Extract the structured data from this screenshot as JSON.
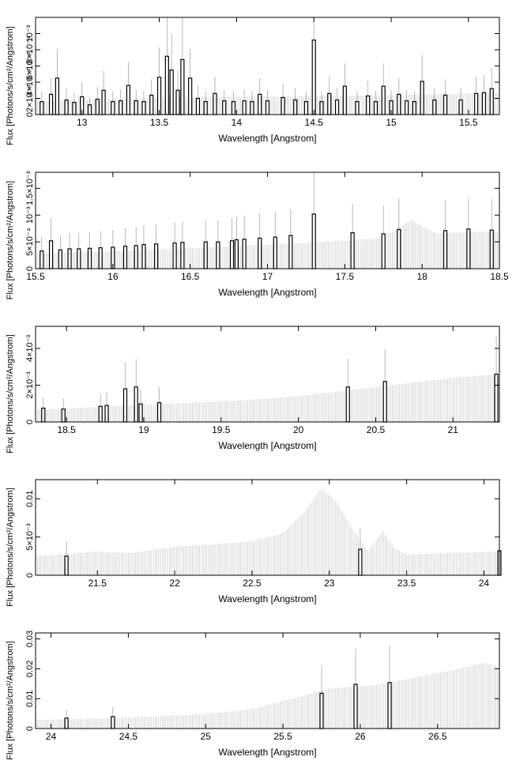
{
  "figure": {
    "x_label": "Wavelength [Angstrom]",
    "y_label": "Flux [Photons/s/cm²/Angstrom]"
  },
  "chart_data": [
    {
      "type": "bar",
      "title": "",
      "xlabel": "Wavelength [Angstrom]",
      "ylabel": "Flux [Photons/s/cm²/Angstrom]",
      "xlim": [
        12.7,
        15.7
      ],
      "ylim": [
        0,
        0.0012
      ],
      "x_ticks": [
        13,
        13.5,
        14,
        14.5,
        15,
        15.5
      ],
      "y_ticks": [
        {
          "v": 0,
          "label": "0"
        },
        {
          "v": 0.0002,
          "label": "2×10⁻⁴"
        },
        {
          "v": 0.0004,
          "label": "4×10⁻⁴"
        },
        {
          "v": 0.0006,
          "label": "6×10⁻⁴"
        },
        {
          "v": 0.0008,
          "label": "8×10⁻⁴"
        },
        {
          "v": 0.001,
          "label": "10⁻³"
        }
      ],
      "model": {
        "color": "#bdbdbd",
        "points": [
          [
            12.7,
            0.00016
          ],
          [
            13.0,
            0.00018
          ],
          [
            13.5,
            0.00021
          ],
          [
            14.0,
            0.00022
          ],
          [
            14.5,
            0.00023
          ],
          [
            15.0,
            0.00024
          ],
          [
            15.5,
            0.00026
          ],
          [
            15.7,
            0.00027
          ]
        ]
      },
      "bins": {
        "color": "#000000",
        "points": [
          [
            12.74,
            0.00016
          ],
          [
            12.8,
            0.00025
          ],
          [
            12.84,
            0.00045
          ],
          [
            12.9,
            0.00018
          ],
          [
            12.95,
            0.00015
          ],
          [
            13.0,
            0.00022
          ],
          [
            13.05,
            0.00012
          ],
          [
            13.1,
            0.00019
          ],
          [
            13.14,
            0.0003
          ],
          [
            13.2,
            0.00016
          ],
          [
            13.25,
            0.00017
          ],
          [
            13.3,
            0.00036
          ],
          [
            13.35,
            0.00017
          ],
          [
            13.4,
            0.00016
          ],
          [
            13.45,
            0.00024
          ],
          [
            13.5,
            0.00046
          ],
          [
            13.55,
            0.00072
          ],
          [
            13.58,
            0.00055
          ],
          [
            13.62,
            0.0003
          ],
          [
            13.65,
            0.00068
          ],
          [
            13.7,
            0.00045
          ],
          [
            13.75,
            0.0002
          ],
          [
            13.8,
            0.00016
          ],
          [
            13.86,
            0.00026
          ],
          [
            13.92,
            0.00017
          ],
          [
            13.98,
            0.00016
          ],
          [
            14.05,
            0.00017
          ],
          [
            14.1,
            0.00016
          ],
          [
            14.15,
            0.00025
          ],
          [
            14.2,
            0.00017
          ],
          [
            14.3,
            0.00021
          ],
          [
            14.38,
            0.00018
          ],
          [
            14.45,
            0.00016
          ],
          [
            14.5,
            0.00092
          ],
          [
            14.55,
            0.00016
          ],
          [
            14.6,
            0.00026
          ],
          [
            14.65,
            0.00018
          ],
          [
            14.7,
            0.00035
          ],
          [
            14.78,
            0.00016
          ],
          [
            14.85,
            0.00023
          ],
          [
            14.9,
            0.00016
          ],
          [
            14.95,
            0.00035
          ],
          [
            15.0,
            0.00017
          ],
          [
            15.05,
            0.00025
          ],
          [
            15.1,
            0.00017
          ],
          [
            15.15,
            0.00016
          ],
          [
            15.2,
            0.00041
          ],
          [
            15.28,
            0.00018
          ],
          [
            15.35,
            0.00024
          ],
          [
            15.45,
            0.00018
          ],
          [
            15.55,
            0.00026
          ],
          [
            15.6,
            0.00027
          ],
          [
            15.65,
            0.00032
          ]
        ]
      }
    },
    {
      "type": "bar",
      "title": "",
      "xlabel": "Wavelength [Angstrom]",
      "ylabel": "Flux [Photons/s/cm²/Angstrom]",
      "xlim": [
        15.5,
        18.5
      ],
      "ylim": [
        0,
        0.0018
      ],
      "x_ticks": [
        15.5,
        16,
        16.5,
        17,
        17.5,
        18,
        18.5
      ],
      "y_ticks": [
        {
          "v": 0,
          "label": "0"
        },
        {
          "v": 0.0005,
          "label": "5×10⁻⁴"
        },
        {
          "v": 0.001,
          "label": "10⁻³"
        },
        {
          "v": 0.0015,
          "label": "1.5×10⁻³"
        }
      ],
      "model": {
        "color": "#bdbdbd",
        "points": [
          [
            15.5,
            0.00028
          ],
          [
            16.0,
            0.00032
          ],
          [
            16.5,
            0.00038
          ],
          [
            17.0,
            0.00045
          ],
          [
            17.5,
            0.00052
          ],
          [
            17.7,
            0.00056
          ],
          [
            17.8,
            0.00068
          ],
          [
            17.93,
            0.00092
          ],
          [
            18.0,
            0.00078
          ],
          [
            18.1,
            0.00065
          ],
          [
            18.3,
            0.00068
          ],
          [
            18.5,
            0.0007
          ]
        ]
      },
      "bins": {
        "color": "#000000",
        "points": [
          [
            15.54,
            0.00033
          ],
          [
            15.6,
            0.00052
          ],
          [
            15.66,
            0.00035
          ],
          [
            15.72,
            0.00037
          ],
          [
            15.78,
            0.00037
          ],
          [
            15.85,
            0.00038
          ],
          [
            15.92,
            0.00039
          ],
          [
            16.0,
            0.0004
          ],
          [
            16.08,
            0.00042
          ],
          [
            16.15,
            0.00043
          ],
          [
            16.2,
            0.00045
          ],
          [
            16.28,
            0.00046
          ],
          [
            16.4,
            0.00048
          ],
          [
            16.45,
            0.00049
          ],
          [
            16.6,
            0.0005
          ],
          [
            16.68,
            0.0005
          ],
          [
            16.77,
            0.00052
          ],
          [
            16.8,
            0.00054
          ],
          [
            16.85,
            0.00055
          ],
          [
            16.95,
            0.00057
          ],
          [
            17.05,
            0.00059
          ],
          [
            17.15,
            0.00062
          ],
          [
            17.3,
            0.00102
          ],
          [
            17.55,
            0.00067
          ],
          [
            17.75,
            0.00065
          ],
          [
            17.85,
            0.00073
          ],
          [
            18.15,
            0.00071
          ],
          [
            18.3,
            0.00074
          ],
          [
            18.45,
            0.00072
          ]
        ]
      }
    },
    {
      "type": "bar",
      "title": "",
      "xlabel": "Wavelength [Angstrom]",
      "ylabel": "Flux [Photons/s/cm²/Angstrom]",
      "xlim": [
        18.3,
        21.3
      ],
      "ylim": [
        0,
        0.0052
      ],
      "x_ticks": [
        18.5,
        19,
        19.5,
        20,
        20.5,
        21
      ],
      "y_ticks": [
        {
          "v": 0,
          "label": "0"
        },
        {
          "v": 0.002,
          "label": "2×10⁻³"
        },
        {
          "v": 0.004,
          "label": "4×10⁻³"
        }
      ],
      "model": {
        "color": "#bdbdbd",
        "points": [
          [
            18.3,
            0.00065
          ],
          [
            18.8,
            0.00085
          ],
          [
            19.0,
            0.00095
          ],
          [
            19.5,
            0.0011
          ],
          [
            20.0,
            0.0014
          ],
          [
            20.5,
            0.0019
          ],
          [
            21.0,
            0.0024
          ],
          [
            21.3,
            0.0026
          ]
        ]
      },
      "bins": {
        "color": "#000000",
        "points": [
          [
            18.35,
            0.00075
          ],
          [
            18.48,
            0.0007
          ],
          [
            18.72,
            0.00085
          ],
          [
            18.76,
            0.0009
          ],
          [
            18.88,
            0.0018
          ],
          [
            18.95,
            0.0019
          ],
          [
            18.98,
            0.00098
          ],
          [
            19.1,
            0.00105
          ],
          [
            20.32,
            0.0019
          ],
          [
            20.56,
            0.0022
          ],
          [
            21.28,
            0.0026
          ]
        ]
      }
    },
    {
      "type": "bar",
      "title": "",
      "xlabel": "Wavelength [Angstrom]",
      "ylabel": "Flux [Photons/s/cm²/Angstrom]",
      "xlim": [
        21.1,
        24.1
      ],
      "ylim": [
        0,
        0.0125
      ],
      "x_ticks": [
        21.5,
        22,
        22.5,
        23,
        23.5,
        24
      ],
      "y_ticks": [
        {
          "v": 0,
          "label": "0"
        },
        {
          "v": 0.005,
          "label": "5×10⁻³"
        },
        {
          "v": 0.01,
          "label": "0.01"
        }
      ],
      "model": {
        "color": "#bdbdbd",
        "points": [
          [
            21.1,
            0.0025
          ],
          [
            21.3,
            0.0028
          ],
          [
            21.5,
            0.0031
          ],
          [
            21.7,
            0.0029
          ],
          [
            22.0,
            0.0037
          ],
          [
            22.5,
            0.0044
          ],
          [
            22.7,
            0.0055
          ],
          [
            22.85,
            0.0085
          ],
          [
            22.95,
            0.0114
          ],
          [
            23.05,
            0.0095
          ],
          [
            23.15,
            0.006
          ],
          [
            23.25,
            0.0032
          ],
          [
            23.3,
            0.0045
          ],
          [
            23.35,
            0.0057
          ],
          [
            23.42,
            0.0035
          ],
          [
            23.5,
            0.0027
          ],
          [
            24.1,
            0.0031
          ]
        ]
      },
      "bins": {
        "color": "#000000",
        "points": [
          [
            21.3,
            0.0025
          ],
          [
            23.2,
            0.0034
          ],
          [
            24.1,
            0.0032
          ]
        ]
      }
    },
    {
      "type": "bar",
      "title": "",
      "xlabel": "Wavelength [Angstrom]",
      "ylabel": "Flux [Photons/s/cm²/Angstrom]",
      "xlim": [
        23.9,
        26.9
      ],
      "ylim": [
        0,
        0.032
      ],
      "x_ticks": [
        24,
        24.5,
        25,
        25.5,
        26,
        26.5
      ],
      "y_ticks": [
        {
          "v": 0,
          "label": "0"
        },
        {
          "v": 0.01,
          "label": "0.01"
        },
        {
          "v": 0.02,
          "label": "0.02"
        },
        {
          "v": 0.03,
          "label": "0.03"
        }
      ],
      "model": {
        "color": "#bdbdbd",
        "points": [
          [
            23.9,
            0.0028
          ],
          [
            24.5,
            0.0037
          ],
          [
            25.0,
            0.0048
          ],
          [
            25.3,
            0.0065
          ],
          [
            25.6,
            0.0105
          ],
          [
            25.8,
            0.0135
          ],
          [
            26.1,
            0.0145
          ],
          [
            26.35,
            0.017
          ],
          [
            26.6,
            0.0195
          ],
          [
            26.8,
            0.022
          ],
          [
            26.9,
            0.0205
          ]
        ]
      },
      "bins": {
        "color": "#000000",
        "points": [
          [
            24.1,
            0.0035
          ],
          [
            24.4,
            0.004
          ],
          [
            25.75,
            0.0118
          ],
          [
            25.97,
            0.0148
          ],
          [
            26.19,
            0.0154
          ]
        ]
      }
    }
  ]
}
